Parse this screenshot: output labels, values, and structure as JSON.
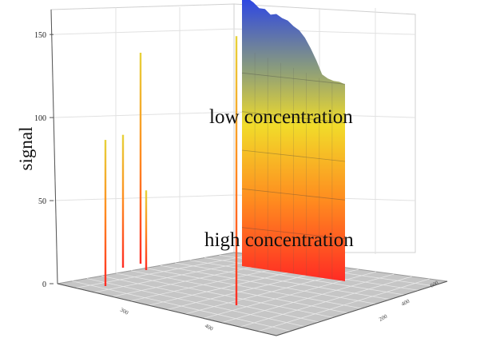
{
  "chart_data": {
    "type": "area",
    "title": "",
    "ylabel": "signal",
    "xlabel": "",
    "zlabel": "",
    "z_ticks": [
      "0",
      "50",
      "100",
      "150"
    ],
    "zlim": [
      0,
      165
    ],
    "x_ticks": [
      "300",
      "400"
    ],
    "y_ticks": [
      "200",
      "400",
      "600"
    ],
    "annotations": {
      "top": "low concentration",
      "bottom": "high concentration"
    },
    "colormap": [
      "#ff2b24",
      "#ff8a1f",
      "#f1dc2a",
      "#8a9c7c",
      "#2b44e6"
    ],
    "grid": true,
    "spikes": [
      {
        "position": 1,
        "value": 88
      },
      {
        "position": 2,
        "value": 80
      },
      {
        "position": 3,
        "value": 127
      },
      {
        "position": 4,
        "value": 48
      },
      {
        "position": 5,
        "value": 162
      }
    ],
    "surface_top_profile": [
      165,
      165,
      163,
      160,
      160,
      157,
      158,
      156,
      155,
      152,
      150,
      146,
      140,
      133,
      125,
      123,
      122,
      122,
      121
    ],
    "surface_base": 0
  }
}
